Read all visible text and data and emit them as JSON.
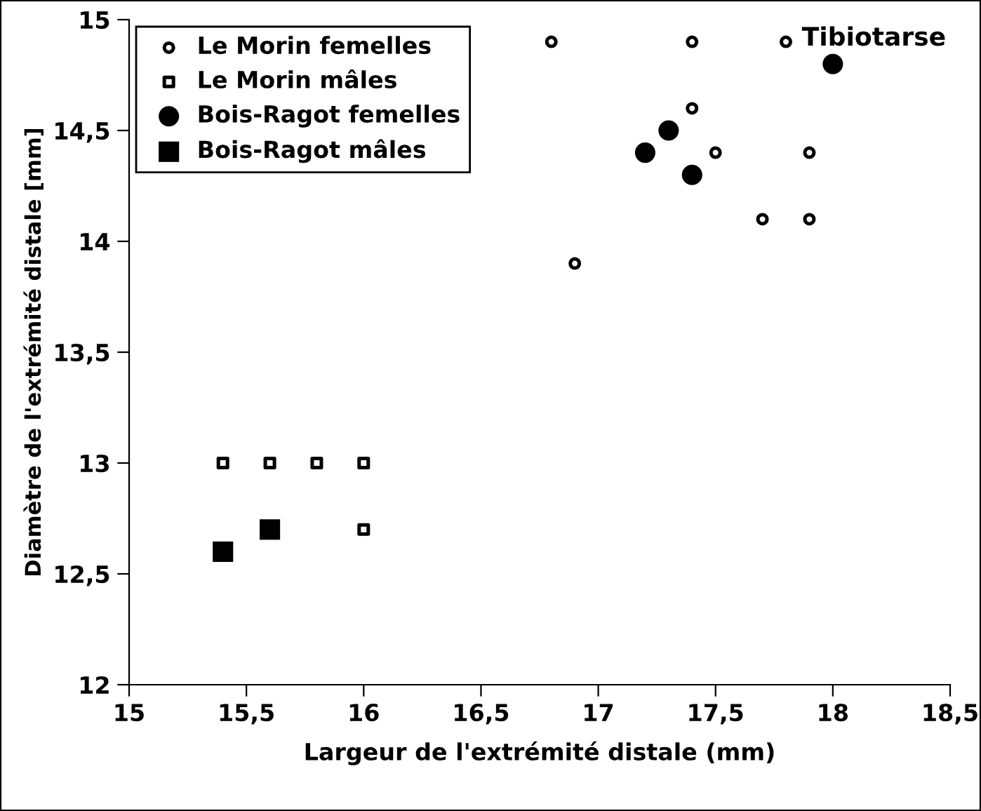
{
  "chart_data": {
    "type": "scatter",
    "title": "Tibiotarse",
    "xlabel": "Largeur de l'extrémité distale (mm)",
    "ylabel": "Diamètre de l'extrémité distale [mm]",
    "xlim": [
      15,
      18.5
    ],
    "ylim": [
      12,
      15
    ],
    "xticks": [
      15,
      {
        "value": 15.5,
        "label": "15,5"
      },
      16,
      {
        "value": 16.5,
        "label": "16,5"
      },
      17,
      {
        "value": 17.5,
        "label": "17,5"
      },
      18,
      {
        "value": 18.5,
        "label": "18,5"
      }
    ],
    "yticks": [
      12,
      {
        "value": 12.5,
        "label": "12,5"
      },
      13,
      {
        "value": 13.5,
        "label": "13,5"
      },
      14,
      {
        "value": 14.5,
        "label": "14,5"
      },
      15
    ],
    "grid": false,
    "legend": "top left",
    "series": [
      {
        "name": "Le Morin femelles",
        "color": "#ffffff",
        "marker": "circle",
        "x": [
          16.8,
          17.4,
          17.8,
          17.4,
          17.5,
          17.9,
          17.7,
          17.9,
          16.9
        ],
        "values": [
          14.9,
          14.9,
          14.9,
          14.6,
          14.4,
          14.4,
          14.1,
          14.1,
          13.9
        ]
      },
      {
        "name": "Le Morin mâles",
        "color": "#ffffff",
        "marker": "square",
        "x": [
          15.4,
          15.6,
          15.8,
          16.0,
          16.0
        ],
        "values": [
          13.0,
          13.0,
          13.0,
          13.0,
          12.7
        ]
      },
      {
        "name": "Bois-Ragot femelles",
        "color": "#000000",
        "marker": "circle",
        "x": [
          18.0,
          17.3,
          17.2,
          17.4
        ],
        "values": [
          14.8,
          14.5,
          14.4,
          14.3
        ]
      },
      {
        "name": "Bois-Ragot mâles",
        "color": "#000000",
        "marker": "square",
        "x": [
          15.4,
          15.6
        ],
        "values": [
          12.6,
          12.7
        ]
      }
    ]
  }
}
